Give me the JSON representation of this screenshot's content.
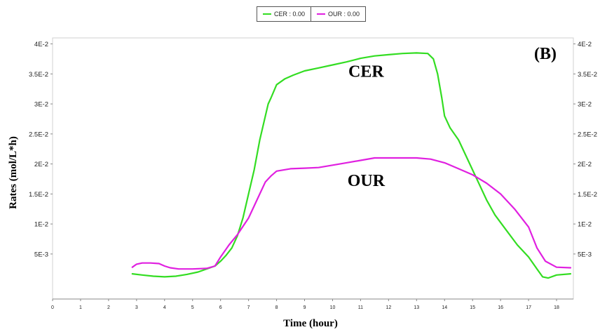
{
  "legend": [
    {
      "label": "CER : 0.00",
      "color": "#33dd22"
    },
    {
      "label": "OUR : 0.00",
      "color": "#e020e0"
    }
  ],
  "chart_data": {
    "type": "line",
    "xlabel": "Time (hour)",
    "ylabel": "Rates (mol/L*h)",
    "xlim": [
      0,
      18.6
    ],
    "ylim": [
      -0.0025,
      0.041
    ],
    "xticks": [
      0,
      1,
      2,
      3,
      4,
      5,
      6,
      7,
      8,
      9,
      10,
      11,
      12,
      13,
      14,
      15,
      16,
      17,
      18
    ],
    "yticks": [
      0.005,
      0.01,
      0.015,
      0.02,
      0.025,
      0.03,
      0.035,
      0.04
    ],
    "ytick_labels": [
      "5E-3",
      "1E-2",
      "1.5E-2",
      "2E-2",
      "2.5E-2",
      "3E-2",
      "3.5E-2",
      "4E-2"
    ],
    "grid": false,
    "legend_position": "top-center",
    "annotations": [
      {
        "text": "(B)",
        "x": 17.6,
        "y": 0.0375
      },
      {
        "text": "CER",
        "x": 11.2,
        "y": 0.0345
      },
      {
        "text": "OUR",
        "x": 11.2,
        "y": 0.0163
      }
    ],
    "series": [
      {
        "name": "CER",
        "color": "#33dd22",
        "x": [
          2.85,
          3.2,
          3.6,
          4.0,
          4.4,
          4.8,
          5.2,
          5.5,
          5.8,
          6.0,
          6.2,
          6.4,
          6.6,
          6.8,
          7.0,
          7.2,
          7.4,
          7.55,
          7.7,
          7.8,
          8.0,
          8.3,
          8.6,
          9.0,
          9.5,
          10.0,
          10.5,
          11.0,
          11.5,
          12.0,
          12.5,
          13.0,
          13.4,
          13.6,
          13.75,
          13.9,
          14.0,
          14.2,
          14.5,
          14.8,
          15.2,
          15.5,
          15.8,
          16.2,
          16.6,
          17.0,
          17.3,
          17.5,
          17.7,
          18.0,
          18.5
        ],
        "values": [
          0.0017,
          0.0015,
          0.0013,
          0.0012,
          0.0013,
          0.0016,
          0.002,
          0.0025,
          0.003,
          0.0038,
          0.0048,
          0.006,
          0.008,
          0.011,
          0.015,
          0.019,
          0.024,
          0.027,
          0.03,
          0.031,
          0.0332,
          0.0342,
          0.0348,
          0.0355,
          0.036,
          0.0365,
          0.037,
          0.0376,
          0.038,
          0.0382,
          0.0384,
          0.0385,
          0.0384,
          0.0375,
          0.035,
          0.031,
          0.028,
          0.026,
          0.024,
          0.021,
          0.017,
          0.014,
          0.0115,
          0.009,
          0.0065,
          0.0045,
          0.0025,
          0.0012,
          0.001,
          0.0015,
          0.0017
        ]
      },
      {
        "name": "OUR",
        "color": "#e020e0",
        "x": [
          2.85,
          3.0,
          3.2,
          3.5,
          3.8,
          4.0,
          4.2,
          4.5,
          5.0,
          5.5,
          5.8,
          6.0,
          6.3,
          6.6,
          7.0,
          7.3,
          7.6,
          7.8,
          8.0,
          8.5,
          9.0,
          9.5,
          10.0,
          10.5,
          11.0,
          11.5,
          12.0,
          12.5,
          13.0,
          13.5,
          14.0,
          14.5,
          15.0,
          15.5,
          16.0,
          16.5,
          17.0,
          17.3,
          17.6,
          18.0,
          18.5
        ],
        "values": [
          0.0028,
          0.0033,
          0.0035,
          0.0035,
          0.0034,
          0.003,
          0.0027,
          0.0025,
          0.0025,
          0.0026,
          0.003,
          0.0045,
          0.0065,
          0.0082,
          0.011,
          0.014,
          0.017,
          0.018,
          0.0188,
          0.0192,
          0.0193,
          0.0194,
          0.0198,
          0.0202,
          0.0206,
          0.021,
          0.021,
          0.021,
          0.021,
          0.0208,
          0.0202,
          0.0192,
          0.0182,
          0.0168,
          0.015,
          0.0125,
          0.0095,
          0.006,
          0.0038,
          0.0028,
          0.0027
        ]
      }
    ]
  }
}
